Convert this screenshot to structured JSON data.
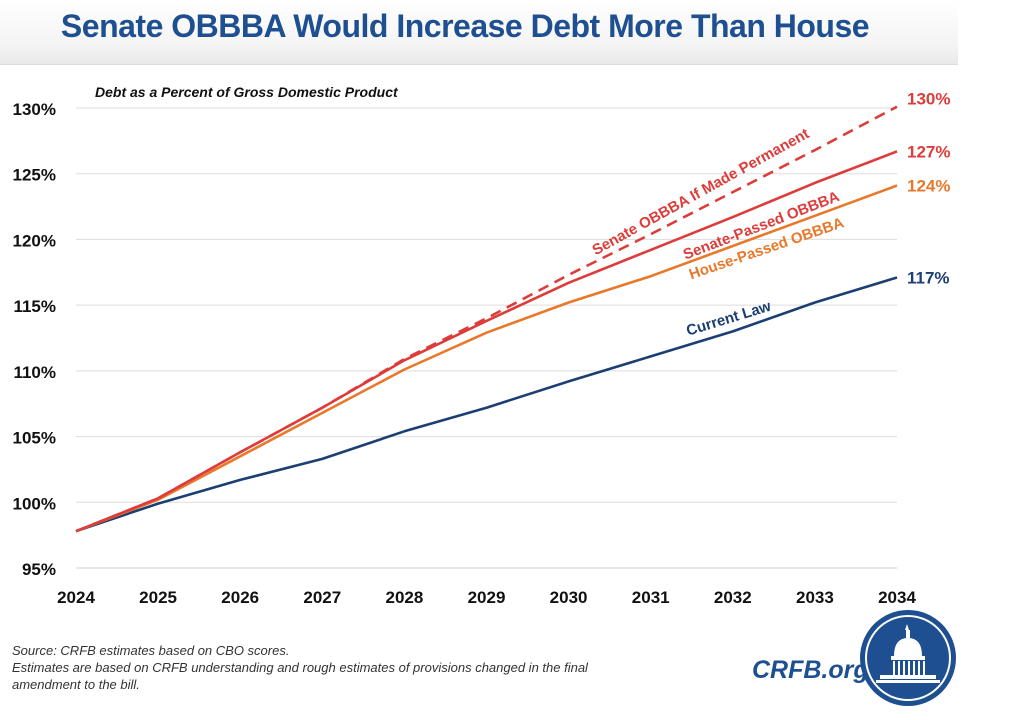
{
  "header": {
    "title": "Senate OBBBA Would Increase Debt More Than House"
  },
  "footer": {
    "source": "Source: CRFB estimates based on CBO scores.",
    "note_line1": "Estimates are based on CRFB understanding and rough estimates of provisions changed in the final",
    "note_line2": "amendment to the bill.",
    "brand": "CRFB.org"
  },
  "colors": {
    "current_law": "#1c3f73",
    "house": "#e8782a",
    "senate": "#dd3d3a",
    "senate_permanent": "#dd3d3a",
    "title": "#1d4f91",
    "grid": "#dddddd"
  },
  "chart_data": {
    "type": "line",
    "title": "Debt as a Percent of Gross Domestic Product",
    "xlabel": "",
    "ylabel": "",
    "x": [
      2024,
      2025,
      2026,
      2027,
      2028,
      2029,
      2030,
      2031,
      2032,
      2033,
      2034
    ],
    "ylim": [
      95,
      130
    ],
    "yticks": [
      "95%",
      "100%",
      "105%",
      "110%",
      "115%",
      "120%",
      "125%",
      "130%"
    ],
    "ytick_values": [
      95,
      100,
      105,
      110,
      115,
      120,
      125,
      130
    ],
    "grid": true,
    "series": [
      {
        "id": "current-law",
        "name": "Current Law",
        "values": [
          97.8,
          99.9,
          101.7,
          103.3,
          105.4,
          107.2,
          109.2,
          111.1,
          113.0,
          115.2,
          117.1
        ],
        "end_label": "117%",
        "style": "solid"
      },
      {
        "id": "house-passed",
        "name": "House-Passed OBBBA",
        "values": [
          97.8,
          100.2,
          103.5,
          106.8,
          110.1,
          112.9,
          115.2,
          117.2,
          119.5,
          121.8,
          124.1
        ],
        "end_label": "124%",
        "style": "solid"
      },
      {
        "id": "senate-passed",
        "name": "Senate-Passed OBBBA",
        "values": [
          97.8,
          100.3,
          103.8,
          107.2,
          110.8,
          113.8,
          116.7,
          119.2,
          121.7,
          124.3,
          126.7
        ],
        "end_label": "127%",
        "style": "solid"
      },
      {
        "id": "senate-permanent",
        "name": "Senate OBBBA If Made Permanent",
        "values": [
          97.8,
          100.3,
          103.8,
          107.2,
          110.9,
          114.0,
          117.3,
          120.4,
          123.6,
          126.8,
          130.1
        ],
        "end_label": "130%",
        "style": "dashed"
      }
    ]
  }
}
